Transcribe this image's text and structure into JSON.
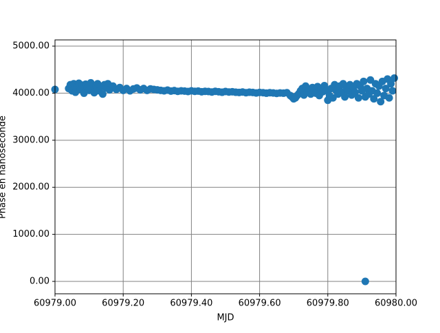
{
  "chart_data": {
    "type": "scatter",
    "xlabel": "MJD",
    "ylabel": "Phase en nanoseconde",
    "color": "#1f77b4",
    "grid": true,
    "xlim": [
      60979.0,
      60980.0
    ],
    "xticks": [
      {
        "value": 60979.0,
        "label": "60979.00"
      },
      {
        "value": 60979.2,
        "label": "60979.20"
      },
      {
        "value": 60979.4,
        "label": "60979.40"
      },
      {
        "value": 60979.6,
        "label": "60979.60"
      },
      {
        "value": 60979.8,
        "label": "60979.80"
      },
      {
        "value": 60980.0,
        "label": "60980.00"
      }
    ],
    "ylim": [
      -263,
      5132
    ],
    "yticks": [
      {
        "value": 0,
        "label": "0.00"
      },
      {
        "value": 1000,
        "label": "1000.00"
      },
      {
        "value": 2000,
        "label": "2000.00"
      },
      {
        "value": 3000,
        "label": "3000.00"
      },
      {
        "value": 4000,
        "label": "4000.00"
      },
      {
        "value": 5000,
        "label": "5000.00"
      }
    ],
    "x": [
      60979.0,
      60979.04,
      60979.045,
      60979.05,
      60979.055,
      60979.06,
      60979.065,
      60979.07,
      60979.075,
      60979.08,
      60979.085,
      60979.09,
      60979.095,
      60979.1,
      60979.105,
      60979.11,
      60979.115,
      60979.12,
      60979.125,
      60979.13,
      60979.135,
      60979.14,
      60979.145,
      60979.15,
      60979.155,
      60979.16,
      60979.17,
      60979.18,
      60979.19,
      60979.2,
      60979.21,
      60979.22,
      60979.23,
      60979.24,
      60979.25,
      60979.26,
      60979.27,
      60979.28,
      60979.29,
      60979.3,
      60979.31,
      60979.32,
      60979.33,
      60979.34,
      60979.35,
      60979.36,
      60979.37,
      60979.38,
      60979.39,
      60979.4,
      60979.41,
      60979.42,
      60979.43,
      60979.44,
      60979.45,
      60979.46,
      60979.47,
      60979.48,
      60979.49,
      60979.5,
      60979.51,
      60979.52,
      60979.53,
      60979.54,
      60979.55,
      60979.56,
      60979.57,
      60979.58,
      60979.59,
      60979.6,
      60979.61,
      60979.62,
      60979.63,
      60979.64,
      60979.65,
      60979.66,
      60979.67,
      60979.68,
      60979.69,
      60979.695,
      60979.7,
      60979.705,
      60979.71,
      60979.715,
      60979.72,
      60979.725,
      60979.73,
      60979.735,
      60979.74,
      60979.745,
      60979.75,
      60979.755,
      60979.76,
      60979.765,
      60979.77,
      60979.775,
      60979.78,
      60979.785,
      60979.79,
      60979.795,
      60979.8,
      60979.805,
      60979.81,
      60979.815,
      60979.82,
      60979.825,
      60979.83,
      60979.835,
      60979.84,
      60979.845,
      60979.85,
      60979.855,
      60979.86,
      60979.865,
      60979.87,
      60979.875,
      60979.88,
      60979.885,
      60979.89,
      60979.895,
      60979.9,
      60979.905,
      60979.91,
      60979.915,
      60979.92,
      60979.925,
      60979.93,
      60979.935,
      60979.94,
      60979.945,
      60979.95,
      60979.955,
      60979.96,
      60979.965,
      60979.97,
      60979.975,
      60979.98,
      60979.985,
      60979.99,
      60979.995,
      60979.91
    ],
    "values": [
      4080,
      4100,
      4180,
      4050,
      4200,
      4020,
      4150,
      4210,
      4080,
      4170,
      4000,
      4190,
      4120,
      4060,
      4220,
      4100,
      4010,
      4160,
      4200,
      4050,
      4140,
      3980,
      4180,
      4110,
      4200,
      4070,
      4150,
      4080,
      4120,
      4060,
      4100,
      4050,
      4090,
      4110,
      4070,
      4100,
      4060,
      4090,
      4080,
      4070,
      4060,
      4050,
      4065,
      4045,
      4055,
      4040,
      4050,
      4045,
      4035,
      4050,
      4040,
      4045,
      4030,
      4040,
      4035,
      4025,
      4040,
      4030,
      4020,
      4035,
      4025,
      4030,
      4020,
      4015,
      4025,
      4010,
      4020,
      4015,
      4005,
      4015,
      4010,
      4000,
      4010,
      4005,
      3995,
      4005,
      4000,
      4010,
      3950,
      3920,
      3880,
      3900,
      3950,
      3990,
      4050,
      4100,
      3960,
      4150,
      4020,
      4080,
      3980,
      4120,
      4060,
      4000,
      4140,
      3950,
      4100,
      4030,
      4160,
      4050,
      3850,
      3950,
      4100,
      3900,
      4180,
      4050,
      3980,
      4150,
      4020,
      4200,
      3920,
      4100,
      4050,
      4180,
      3960,
      4120,
      4020,
      4200,
      3900,
      4150,
      4050,
      4250,
      3920,
      4100,
      3980,
      4280,
      4050,
      3880,
      4200,
      4000,
      4150,
      3820,
      4250,
      3950,
      4100,
      4300,
      3900,
      4200,
      4050,
      4320,
      0
    ]
  }
}
